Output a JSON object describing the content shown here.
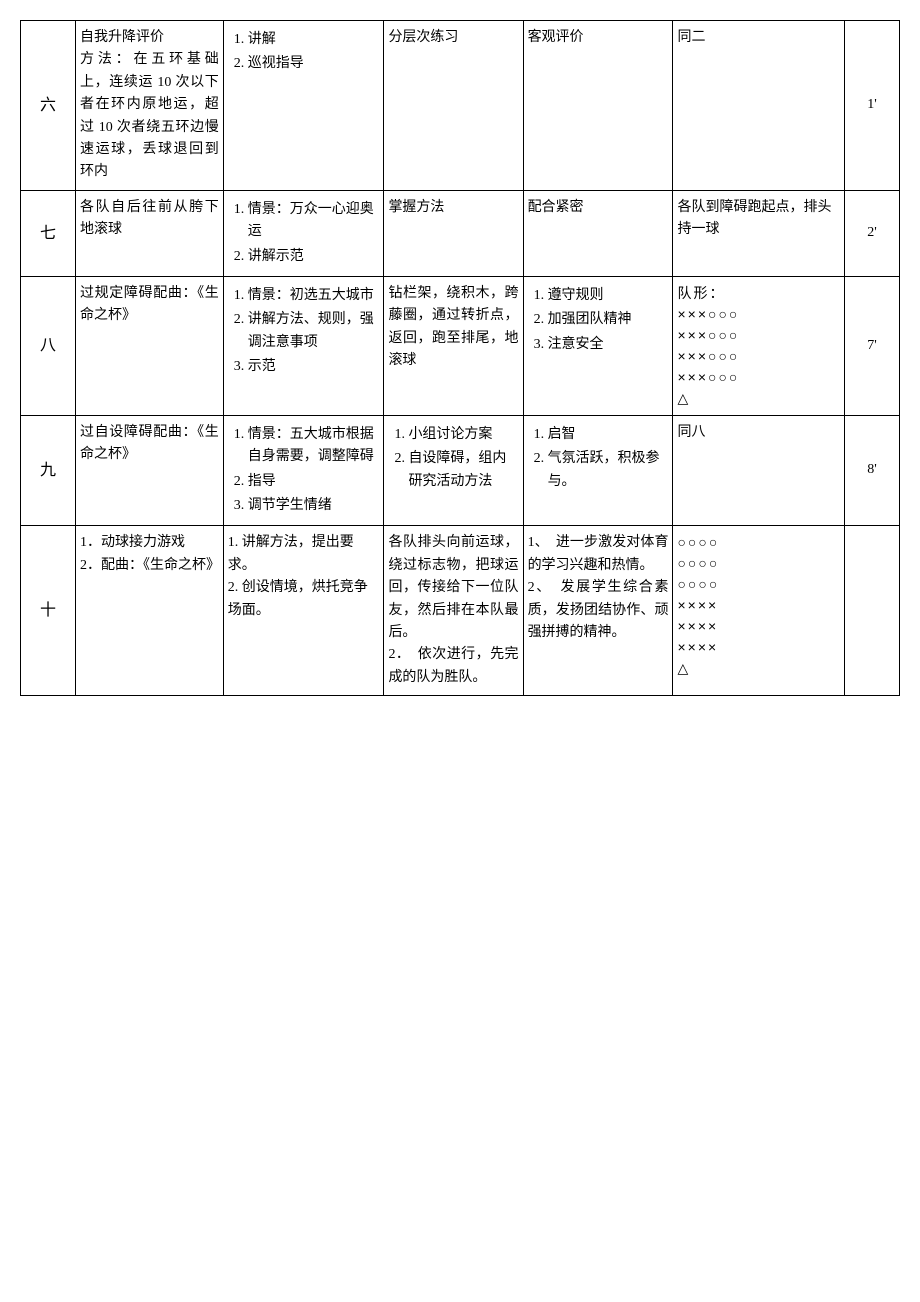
{
  "rows": [
    {
      "n": "六",
      "c2": "自我升降评价\n方法：在五环基础上，连续运 10 次以下者在环内原地运，超过 10 次者绕五环边慢速运球，丢球退回到环内",
      "c3": [
        "讲解",
        "巡视指导"
      ],
      "c4": "分层次练习",
      "c5": "客观评价",
      "c6": "同二",
      "t": "1'"
    },
    {
      "n": "七",
      "c2": "各队自后往前从胯下地滚球",
      "c3": [
        "情景：万众一心迎奥运",
        "讲解示范"
      ],
      "c4": "掌握方法",
      "c5": "配合紧密",
      "c6": "各队到障碍跑起点，排头持一球",
      "t": "2'"
    },
    {
      "n": "八",
      "c2": "过规定障碍配曲：《生命之杯》",
      "c3": [
        "情景：初选五大城市",
        "讲解方法、规则，强调注意事项",
        "示范"
      ],
      "c4": "钻栏架，绕积木，跨藤圈，通过转折点，返回，跑至排尾，地滚球",
      "c5l": [
        "遵守规则",
        "加强团队精神",
        "注意安全"
      ],
      "c6": "队形：\n×××○○○\n×××○○○\n×××○○○\n×××○○○\n△",
      "c6sym": true,
      "t": "7'"
    },
    {
      "n": "九",
      "c2": "过自设障碍配曲：《生命之杯》",
      "c3": [
        "情景：五大城市根据自身需要，调整障碍",
        "指导",
        "调节学生情绪"
      ],
      "c4l": [
        "小组讨论方案",
        "自设障碍，组内研究活动方法"
      ],
      "c5l": [
        "启智",
        "气氛活跃，积极参与。"
      ],
      "c6": "同八",
      "t": "8'"
    },
    {
      "n": "十",
      "c2": "1．动球接力游戏\n2．配曲：《生命之杯》",
      "c3p": "1. 讲解方法，提出要求。\n2. 创设情境，烘托竞争场面。",
      "c4": "各队排头向前运球，绕过标志物，把球运回，传接给下一位队友，然后排在本队最后。\n2．　依次进行，先完成的队为胜队。",
      "c5": "1、　进一步激发对体育的学习兴趣和热情。\n2、　发展学生综合素质，发扬团结协作、顽强拼搏的精神。",
      "c6": "○○○○\n○○○○\n○○○○\n××××\n××××\n××××\n△",
      "c6sym": true,
      "t": ""
    }
  ]
}
